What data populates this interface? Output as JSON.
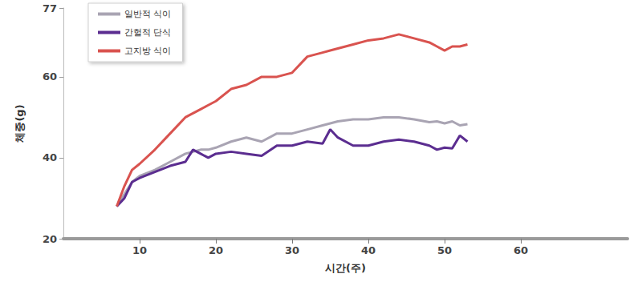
{
  "chart_data": {
    "type": "line",
    "x_label": "시간(주)",
    "y_label": "체중(g)",
    "x": [
      7,
      8,
      9,
      10,
      12,
      14,
      16,
      17,
      18,
      19,
      20,
      22,
      24,
      26,
      28,
      30,
      32,
      34,
      35,
      36,
      38,
      40,
      42,
      44,
      46,
      48,
      49,
      50,
      51,
      52,
      53
    ],
    "series": [
      {
        "name": "일반적 식이",
        "color": "#a9a4b3",
        "values": [
          28,
          31,
          34,
          35.5,
          37,
          39,
          41,
          41.5,
          42,
          42,
          42.5,
          44,
          45,
          44,
          46,
          46,
          47,
          48,
          48.5,
          49,
          49.5,
          49.5,
          50,
          50,
          49.5,
          48.8,
          49,
          48.5,
          49,
          48,
          48.3
        ]
      },
      {
        "name": "간헐적 단식",
        "color": "#5b2d90",
        "values": [
          28,
          30,
          34,
          35,
          36.5,
          38,
          39,
          42,
          41,
          40,
          41,
          41.5,
          41,
          40.5,
          43,
          43,
          44,
          43.5,
          47,
          45,
          43,
          43,
          44,
          44.5,
          44,
          43,
          42,
          42.5,
          42.3,
          45.5,
          44
        ]
      },
      {
        "name": "고지방 식이",
        "color": "#d9534f",
        "values": [
          28,
          33,
          37,
          38.5,
          42,
          46,
          50,
          51,
          52,
          53,
          54,
          57,
          58,
          60,
          60,
          61,
          65,
          66,
          66.5,
          67,
          68,
          69,
          69.5,
          70.5,
          69.5,
          68.5,
          67.5,
          66.5,
          67.5,
          67.5,
          68
        ]
      }
    ],
    "xlim": [
      0,
      74
    ],
    "xticks": [
      10,
      20,
      30,
      40,
      50,
      60
    ],
    "ylim": [
      20,
      77
    ],
    "yticks": [
      20,
      40,
      60
    ],
    "grid": false,
    "legend": "upper left",
    "marker": "none",
    "line_style": "solid"
  }
}
